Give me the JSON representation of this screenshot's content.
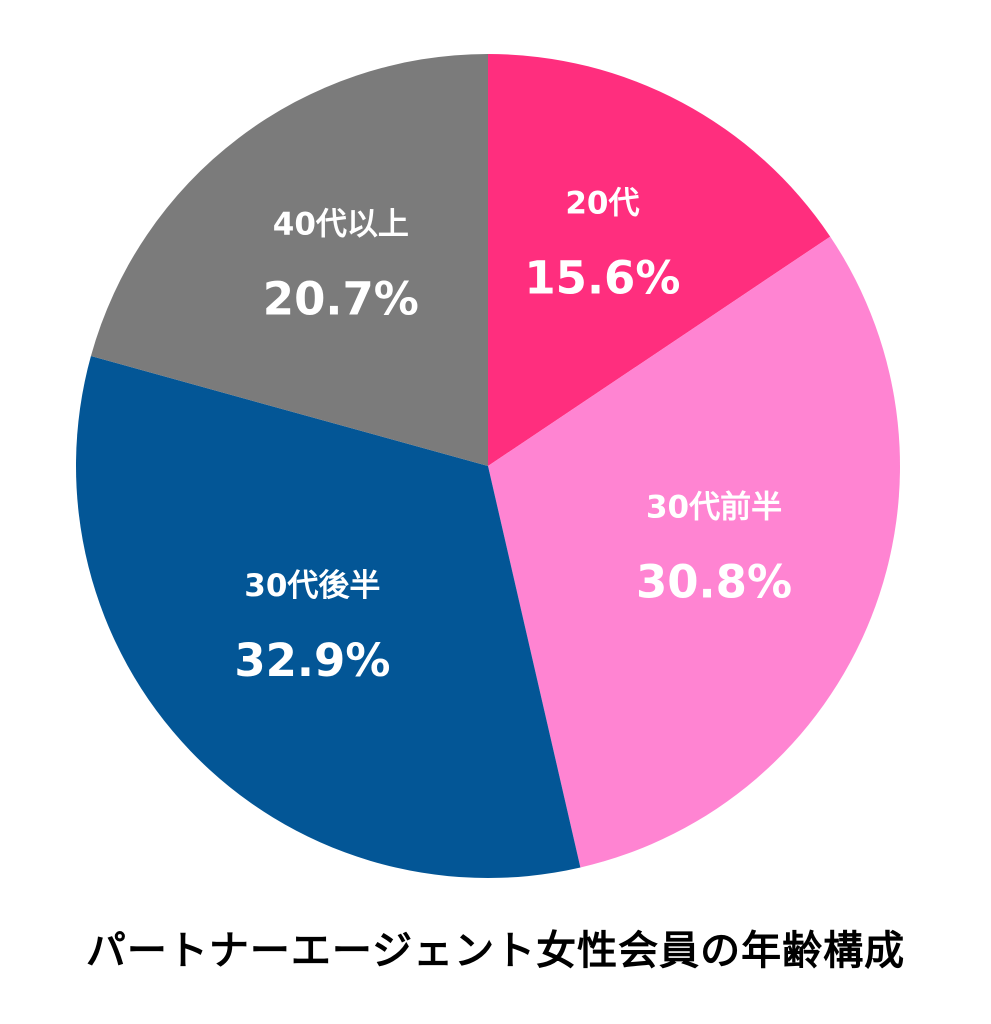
{
  "chart_data": {
    "type": "pie",
    "title": "パートナーエージェント女性会員の年齢構成",
    "start": "12 o'clock, clockwise",
    "slices": [
      {
        "label": "20代",
        "value": 15.6,
        "value_label": "15.6%",
        "color": "#ff2e7e"
      },
      {
        "label": "30代前半",
        "value": 30.8,
        "value_label": "30.8%",
        "color": "#ff84d2"
      },
      {
        "label": "30代後半",
        "value": 32.9,
        "value_label": "32.9%",
        "color": "#035696"
      },
      {
        "label": "40代以上",
        "value": 20.7,
        "value_label": "20.7%",
        "color": "#7b7b7b"
      }
    ]
  }
}
